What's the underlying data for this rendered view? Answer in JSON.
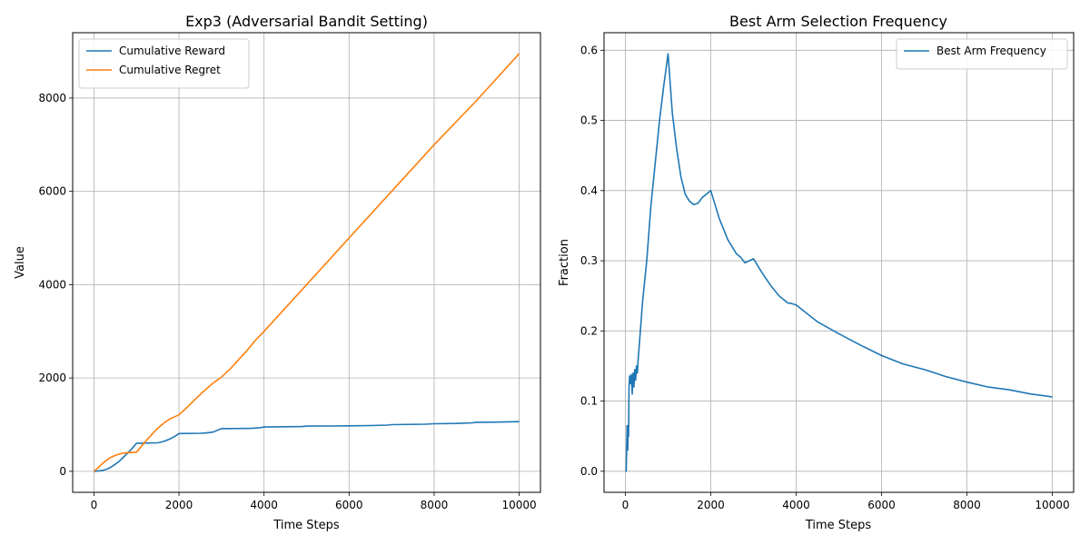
{
  "chart_data": [
    {
      "type": "line",
      "title": "Exp3 (Adversarial Bandit Setting)",
      "xlabel": "Time Steps",
      "ylabel": "Value",
      "xlim": [
        -500,
        10500
      ],
      "ylim": [
        -450,
        9400
      ],
      "xticks": [
        0,
        2000,
        4000,
        6000,
        8000,
        10000
      ],
      "xtick_labels": [
        "0",
        "2000",
        "4000",
        "6000",
        "8000",
        "10000"
      ],
      "yticks": [
        0,
        2000,
        4000,
        6000,
        8000
      ],
      "ytick_labels": [
        "0",
        "2000",
        "4000",
        "6000",
        "8000"
      ],
      "grid": true,
      "legend": "upper left",
      "series": [
        {
          "name": "Cumulative Reward",
          "color": "#1f77b4",
          "x": [
            0,
            200,
            300,
            400,
            500,
            600,
            700,
            800,
            900,
            1000,
            1200,
            1500,
            1600,
            1700,
            1800,
            1900,
            2000,
            2200,
            2500,
            2600,
            2800,
            2900,
            3000,
            3500,
            3700,
            3900,
            4000,
            4500,
            4900,
            5000,
            5500,
            6000,
            6500,
            6900,
            7000,
            7800,
            8000,
            8500,
            8900,
            9000,
            9500,
            10000
          ],
          "y": [
            0,
            20,
            45,
            90,
            150,
            220,
            310,
            400,
            490,
            600,
            605,
            610,
            630,
            660,
            700,
            750,
            810,
            812,
            815,
            820,
            840,
            880,
            915,
            918,
            920,
            935,
            950,
            955,
            960,
            970,
            972,
            975,
            980,
            990,
            1000,
            1010,
            1020,
            1025,
            1040,
            1050,
            1055,
            1065
          ]
        },
        {
          "name": "Cumulative Regret",
          "color": "#ff7f0e",
          "x": [
            0,
            100,
            200,
            300,
            400,
            500,
            600,
            700,
            800,
            900,
            1000,
            1100,
            1200,
            1300,
            1400,
            1500,
            1600,
            1700,
            1800,
            1900,
            2000,
            2200,
            2400,
            2600,
            2800,
            3000,
            3200,
            3400,
            3600,
            3800,
            4000,
            5000,
            6000,
            7000,
            8000,
            9000,
            10000
          ],
          "y": [
            0,
            80,
            170,
            240,
            300,
            340,
            370,
            390,
            400,
            405,
            410,
            520,
            630,
            730,
            830,
            920,
            1000,
            1070,
            1130,
            1170,
            1210,
            1380,
            1560,
            1730,
            1890,
            2020,
            2190,
            2390,
            2590,
            2810,
            3000,
            4000,
            5000,
            6000,
            7000,
            7950,
            8950
          ]
        }
      ]
    },
    {
      "type": "line",
      "title": "Best Arm Selection Frequency",
      "xlabel": "Time Steps",
      "ylabel": "Fraction",
      "xlim": [
        -500,
        10500
      ],
      "ylim": [
        -0.03,
        0.625
      ],
      "xticks": [
        0,
        2000,
        4000,
        6000,
        8000,
        10000
      ],
      "xtick_labels": [
        "0",
        "2000",
        "4000",
        "6000",
        "8000",
        "10000"
      ],
      "yticks": [
        0.0,
        0.1,
        0.2,
        0.3,
        0.4,
        0.5,
        0.6
      ],
      "ytick_labels": [
        "0.0",
        "0.1",
        "0.2",
        "0.3",
        "0.4",
        "0.5",
        "0.6"
      ],
      "grid": true,
      "legend": "upper right",
      "series": [
        {
          "name": "Best Arm Frequency",
          "color": "#1f77b4",
          "x": [
            0,
            20,
            40,
            55,
            65,
            75,
            85,
            100,
            120,
            140,
            160,
            180,
            200,
            220,
            240,
            260,
            280,
            300,
            350,
            400,
            500,
            600,
            700,
            800,
            900,
            1000,
            1100,
            1200,
            1300,
            1400,
            1500,
            1600,
            1700,
            1800,
            1900,
            2000,
            2200,
            2400,
            2600,
            2700,
            2800,
            2900,
            3000,
            3200,
            3400,
            3600,
            3800,
            3900,
            4000,
            4500,
            5000,
            5500,
            6000,
            6500,
            7000,
            7500,
            8000,
            8500,
            9000,
            9500,
            10000
          ],
          "y": [
            0.0,
            0.0,
            0.065,
            0.03,
            0.065,
            0.05,
            0.12,
            0.136,
            0.125,
            0.138,
            0.11,
            0.14,
            0.12,
            0.145,
            0.13,
            0.15,
            0.14,
            0.16,
            0.2,
            0.24,
            0.3,
            0.38,
            0.44,
            0.5,
            0.55,
            0.595,
            0.51,
            0.46,
            0.42,
            0.395,
            0.385,
            0.38,
            0.382,
            0.39,
            0.395,
            0.4,
            0.36,
            0.33,
            0.31,
            0.305,
            0.297,
            0.3,
            0.303,
            0.283,
            0.265,
            0.25,
            0.24,
            0.239,
            0.237,
            0.213,
            0.196,
            0.18,
            0.165,
            0.153,
            0.145,
            0.135,
            0.127,
            0.12,
            0.116,
            0.11,
            0.106
          ]
        }
      ]
    }
  ]
}
